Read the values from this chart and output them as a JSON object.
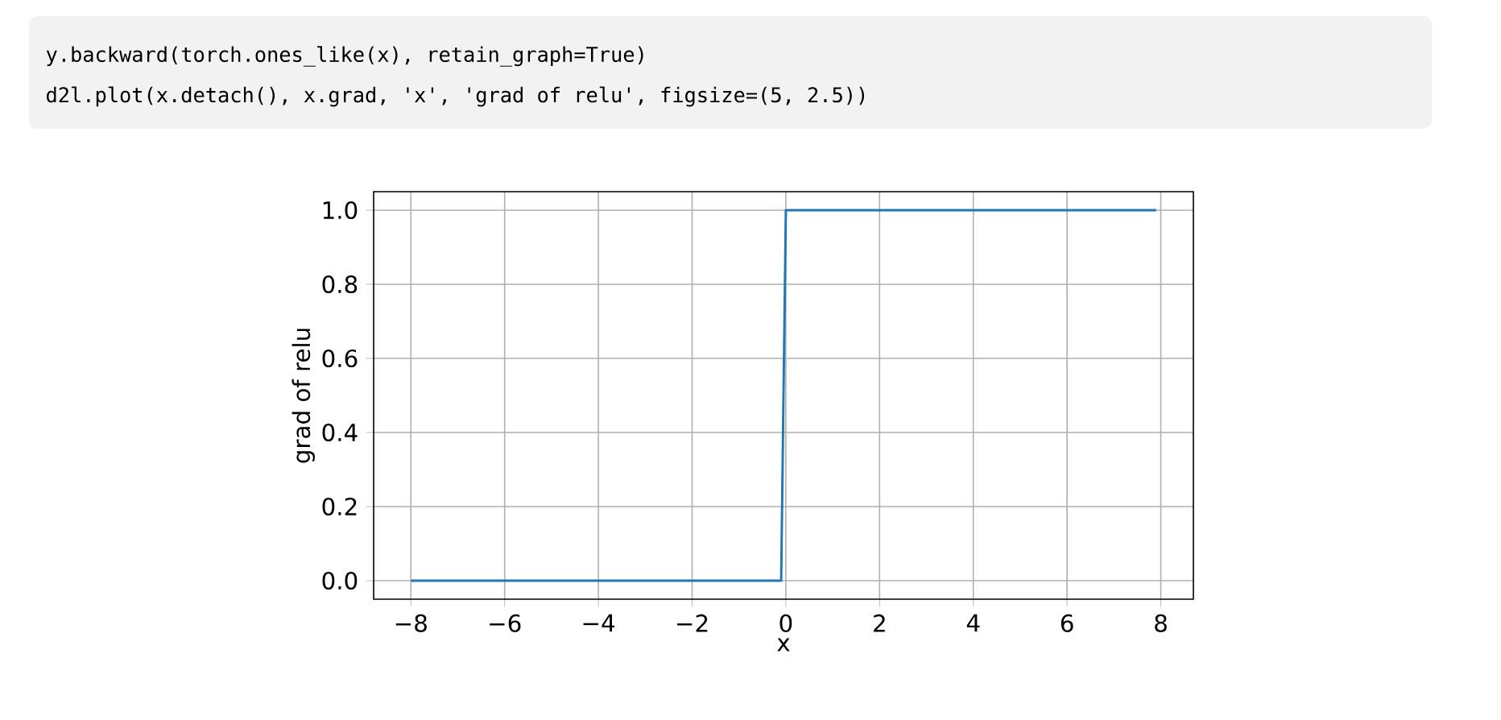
{
  "chart_data": {
    "type": "line",
    "x": [
      -8,
      -0.1,
      0,
      7.9
    ],
    "values": [
      0,
      0,
      1,
      1
    ],
    "color": "#1f77b4",
    "xlabel": "x",
    "ylabel": "grad of relu",
    "xlim": [
      -8.795,
      8.695
    ],
    "ylim": [
      -0.05,
      1.05
    ],
    "xticks": [
      {
        "value": -8,
        "label": "−8"
      },
      {
        "value": -6,
        "label": "−6"
      },
      {
        "value": -4,
        "label": "−4"
      },
      {
        "value": -2,
        "label": "−2"
      },
      0,
      2,
      4,
      6,
      8
    ],
    "yticks": [
      {
        "value": 0,
        "label": "0.0"
      },
      {
        "value": 0.2,
        "label": "0.2"
      },
      {
        "value": 0.4,
        "label": "0.4"
      },
      {
        "value": 0.6,
        "label": "0.6"
      },
      {
        "value": 0.8,
        "label": "0.8"
      },
      {
        "value": 1,
        "label": "1.0"
      }
    ],
    "grid": true,
    "annotations": [
      "y.backward(torch.ones_like(x), retain_graph=True)",
      "d2l.plot(x.detach(), x.grad, 'x', 'grad of relu', figsize=(5, 2.5))"
    ]
  }
}
